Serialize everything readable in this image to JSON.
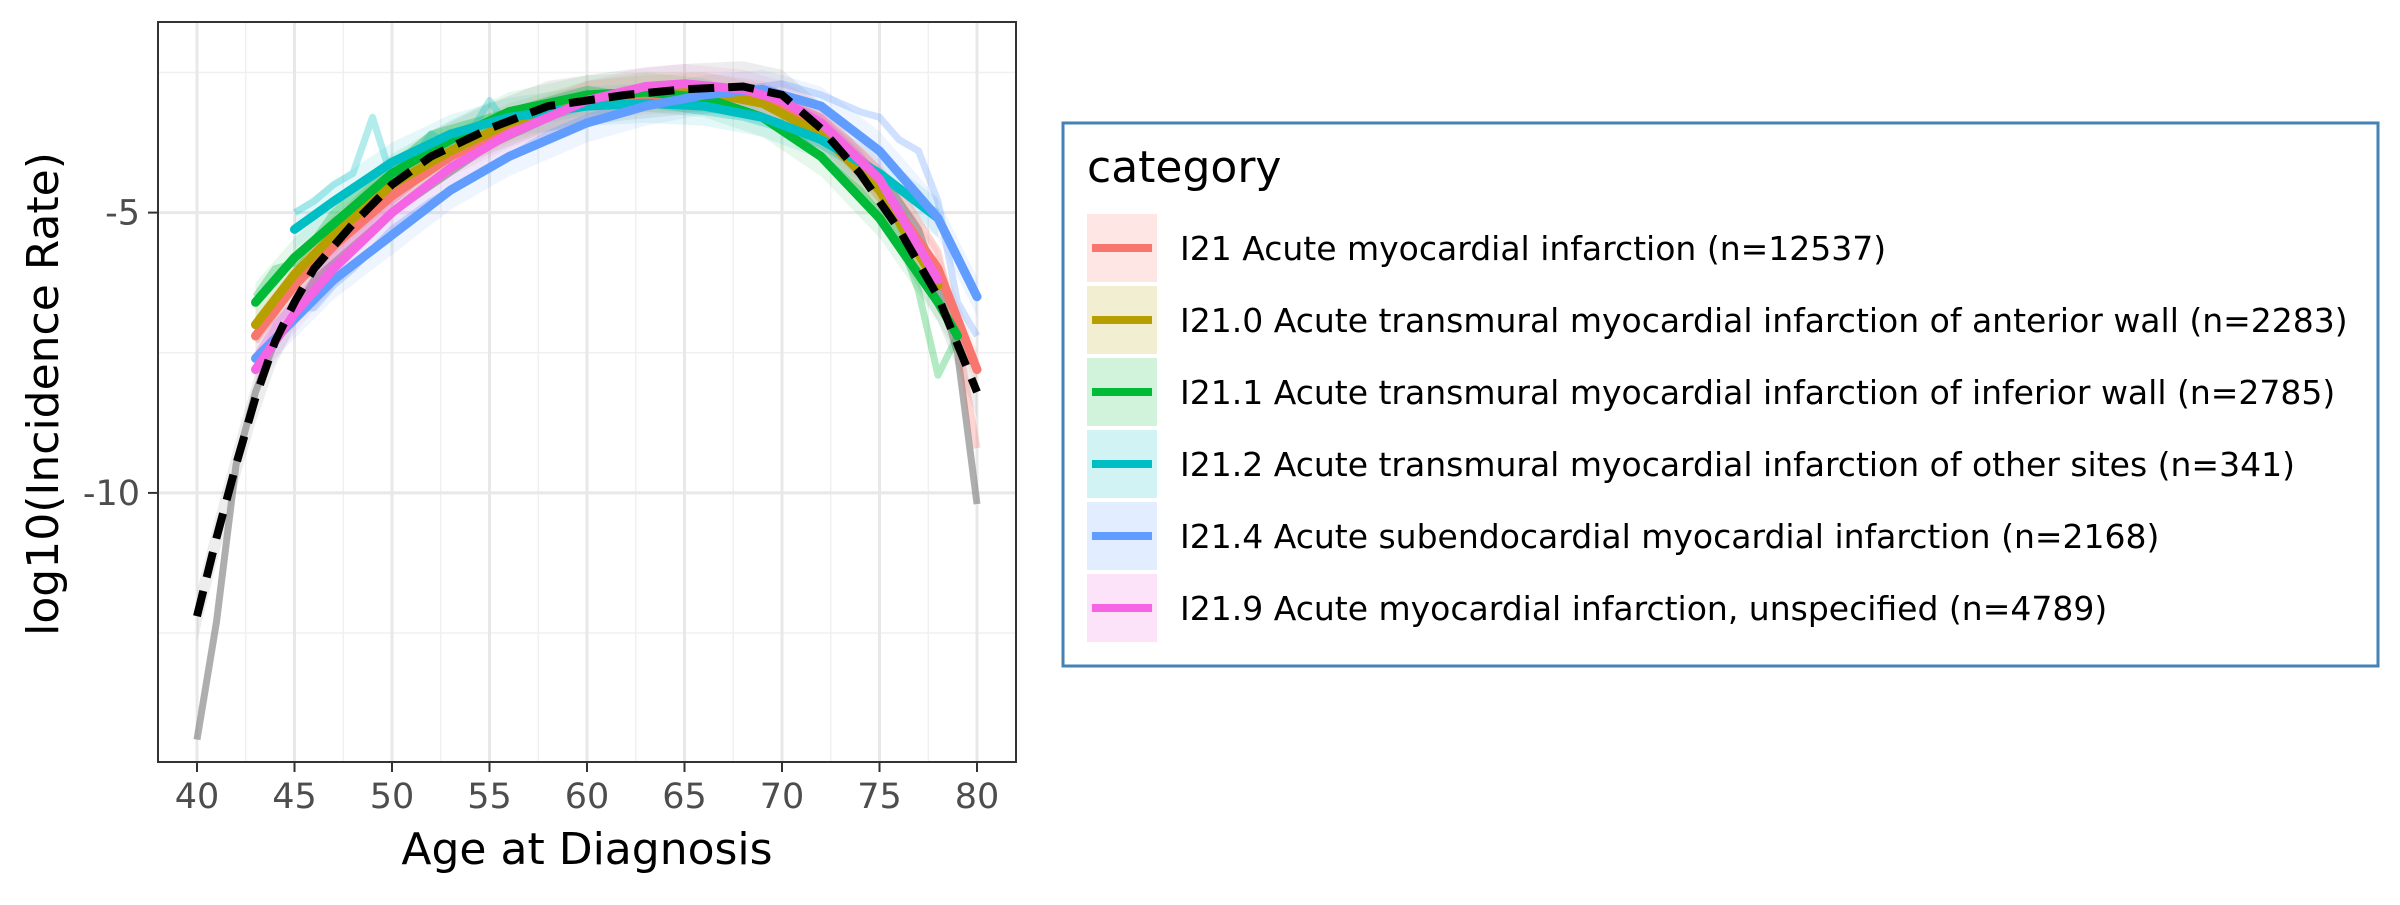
{
  "chart_data": {
    "type": "line",
    "title": "",
    "xlabel": "Age at Diagnosis",
    "ylabel": "log10(Incidence Rate)",
    "xlim": [
      38,
      82
    ],
    "ylim": [
      -14.8,
      -1.6
    ],
    "x_ticks": [
      40,
      45,
      50,
      55,
      60,
      65,
      70,
      75,
      80
    ],
    "y_ticks": [
      -5,
      -10
    ],
    "x_tick_labels": [
      "40",
      "45",
      "50",
      "55",
      "60",
      "65",
      "70",
      "75",
      "80"
    ],
    "y_tick_labels": [
      "-5",
      "-10"
    ],
    "grid": true,
    "legend": {
      "title": "category",
      "placement": "right",
      "entries": [
        {
          "label": "I21 Acute myocardial infarction (n=12537)",
          "color": "#F8766D"
        },
        {
          "label": "I21.0 Acute transmural myocardial infarction of anterior wall (n=2283)",
          "color": "#B79F00"
        },
        {
          "label": "I21.1 Acute transmural myocardial infarction of inferior wall (n=2785)",
          "color": "#00BA38"
        },
        {
          "label": "I21.2 Acute transmural myocardial infarction of other sites (n=341)",
          "color": "#00BFC4"
        },
        {
          "label": "I21.4 Acute subendocardial myocardial infarction (n=2168)",
          "color": "#619CFF"
        },
        {
          "label": "I21.9 Acute myocardial infarction, unspecified (n=4789)",
          "color": "#F564E3"
        }
      ]
    },
    "reference": {
      "raw": {
        "x": [
          40,
          41,
          42,
          43,
          44,
          45,
          46,
          48,
          50,
          55,
          60,
          65,
          70,
          75,
          77,
          78,
          79,
          80
        ],
        "y": [
          -14.4,
          -12.3,
          -9.5,
          -8.2,
          -7.3,
          -6.8,
          -6.2,
          -5.6,
          -5.0,
          -3.8,
          -3.0,
          -2.9,
          -3.0,
          -4.3,
          -5.3,
          -6.3,
          -7.5,
          -10.2
        ]
      },
      "smooth": {
        "x": [
          40,
          41,
          42,
          43,
          44,
          45,
          46,
          48,
          50,
          52,
          55,
          58,
          60,
          62,
          65,
          68,
          70,
          72,
          74,
          76,
          78,
          80
        ],
        "y": [
          -12.2,
          -10.8,
          -9.5,
          -8.3,
          -7.3,
          -6.6,
          -6.0,
          -5.2,
          -4.5,
          -4.0,
          -3.5,
          -3.1,
          -3.0,
          -2.9,
          -2.8,
          -2.75,
          -2.9,
          -3.5,
          -4.3,
          -5.3,
          -6.5,
          -8.2
        ]
      }
    },
    "series": [
      {
        "name": "I21 Acute myocardial infarction (n=12537)",
        "color": "#F8766D",
        "raw": {
          "x": [
            43,
            44,
            45,
            46,
            47,
            48,
            50,
            52,
            55,
            58,
            60,
            62,
            65,
            68,
            70,
            72,
            74,
            76,
            78,
            79,
            80
          ],
          "y": [
            -7.3,
            -6.8,
            -6.3,
            -5.9,
            -5.6,
            -5.3,
            -4.6,
            -4.1,
            -3.6,
            -3.2,
            -3.0,
            -2.9,
            -2.8,
            -2.8,
            -3.0,
            -3.3,
            -3.9,
            -4.6,
            -5.7,
            -7.2,
            -9.2
          ]
        },
        "smooth": {
          "x": [
            43,
            45,
            47,
            50,
            53,
            56,
            60,
            63,
            66,
            69,
            72,
            75,
            78,
            80
          ],
          "y": [
            -7.2,
            -6.3,
            -5.6,
            -4.7,
            -4.0,
            -3.5,
            -3.0,
            -2.9,
            -2.85,
            -3.0,
            -3.5,
            -4.5,
            -6.0,
            -7.8
          ]
        }
      },
      {
        "name": "I21.0 Acute transmural myocardial infarction of anterior wall (n=2283)",
        "color": "#B79F00",
        "raw": {
          "x": [
            43,
            44,
            45,
            46,
            48,
            50,
            52,
            55,
            58,
            60,
            62,
            65,
            68,
            70,
            72,
            74,
            76,
            78
          ],
          "y": [
            -7.0,
            -6.6,
            -6.1,
            -5.6,
            -5.0,
            -4.5,
            -4.0,
            -3.5,
            -3.1,
            -2.9,
            -2.9,
            -2.8,
            -2.9,
            -3.1,
            -3.6,
            -4.3,
            -5.2,
            -6.6
          ]
        },
        "smooth": {
          "x": [
            43,
            45,
            47,
            50,
            53,
            56,
            60,
            63,
            66,
            69,
            72,
            75,
            78
          ],
          "y": [
            -7.0,
            -6.1,
            -5.4,
            -4.5,
            -3.9,
            -3.4,
            -3.0,
            -2.85,
            -2.85,
            -3.05,
            -3.6,
            -4.6,
            -6.3
          ]
        }
      },
      {
        "name": "I21.1 Acute transmural myocardial infarction of inferior wall (n=2785)",
        "color": "#00BA38",
        "raw": {
          "x": [
            43,
            44,
            45,
            46,
            47,
            48,
            50,
            52,
            55,
            58,
            60,
            62,
            65,
            68,
            70,
            72,
            74,
            76,
            77,
            78,
            79
          ],
          "y": [
            -6.5,
            -6.0,
            -5.9,
            -5.5,
            -5.0,
            -4.7,
            -4.2,
            -3.6,
            -3.3,
            -3.0,
            -2.8,
            -2.9,
            -2.9,
            -3.2,
            -3.4,
            -4.0,
            -4.6,
            -5.4,
            -6.4,
            -7.9,
            -7.2
          ]
        },
        "smooth": {
          "x": [
            43,
            45,
            47,
            50,
            53,
            56,
            60,
            63,
            66,
            69,
            72,
            75,
            78,
            79
          ],
          "y": [
            -6.6,
            -5.8,
            -5.2,
            -4.3,
            -3.7,
            -3.2,
            -2.9,
            -2.85,
            -2.95,
            -3.3,
            -4.0,
            -5.1,
            -6.6,
            -7.2
          ]
        }
      },
      {
        "name": "I21.2 Acute transmural myocardial infarction of other sites (n=341)",
        "color": "#00BFC4",
        "raw": {
          "x": [
            45,
            46,
            47,
            48,
            49,
            50,
            51,
            52,
            53,
            54,
            55,
            56,
            57,
            58,
            60,
            62,
            64,
            66,
            68,
            70,
            72,
            74,
            76,
            78
          ],
          "y": [
            -5.0,
            -4.8,
            -4.5,
            -4.3,
            -3.3,
            -4.4,
            -4.1,
            -3.6,
            -3.8,
            -3.6,
            -3.0,
            -3.5,
            -3.1,
            -3.3,
            -3.1,
            -3.0,
            -3.1,
            -3.2,
            -3.3,
            -3.5,
            -3.8,
            -4.2,
            -4.6,
            -5.0
          ]
        },
        "smooth": {
          "x": [
            45,
            47,
            50,
            53,
            56,
            60,
            63,
            66,
            69,
            72,
            75,
            78
          ],
          "y": [
            -5.3,
            -4.8,
            -4.1,
            -3.6,
            -3.3,
            -3.1,
            -3.05,
            -3.1,
            -3.3,
            -3.7,
            -4.3,
            -5.1
          ]
        }
      },
      {
        "name": "I21.4 Acute subendocardial myocardial infarction (n=2168)",
        "color": "#619CFF",
        "raw": {
          "x": [
            45,
            46,
            47,
            48,
            50,
            52,
            55,
            58,
            60,
            62,
            65,
            68,
            70,
            72,
            74,
            75,
            76,
            77,
            78,
            79,
            80
          ],
          "y": [
            -6.7,
            -6.7,
            -6.3,
            -6.0,
            -5.3,
            -4.8,
            -4.2,
            -3.6,
            -3.3,
            -3.1,
            -3.0,
            -2.8,
            -2.7,
            -2.9,
            -3.2,
            -3.3,
            -3.7,
            -3.9,
            -4.8,
            -6.6,
            -7.2
          ]
        },
        "smooth": {
          "x": [
            43,
            45,
            47,
            50,
            53,
            56,
            60,
            63,
            66,
            69,
            72,
            75,
            78,
            80
          ],
          "y": [
            -7.6,
            -6.9,
            -6.2,
            -5.4,
            -4.6,
            -4.0,
            -3.4,
            -3.1,
            -2.9,
            -2.8,
            -3.1,
            -3.9,
            -5.1,
            -6.5
          ]
        }
      },
      {
        "name": "I21.9 Acute myocardial infarction, unspecified (n=4789)",
        "color": "#F564E3",
        "raw": {
          "x": [
            43,
            44,
            45,
            46,
            47,
            48,
            50,
            52,
            55,
            58,
            60,
            62,
            65,
            68,
            70,
            72,
            74,
            76,
            78
          ],
          "y": [
            -7.6,
            -7.0,
            -6.6,
            -6.2,
            -5.8,
            -5.5,
            -4.8,
            -4.2,
            -3.7,
            -3.2,
            -3.0,
            -2.8,
            -2.7,
            -2.8,
            -3.0,
            -3.3,
            -4.0,
            -4.9,
            -6.4
          ]
        },
        "smooth": {
          "x": [
            43,
            45,
            47,
            50,
            53,
            56,
            60,
            63,
            65,
            68,
            70,
            72,
            75,
            78
          ],
          "y": [
            -7.8,
            -6.8,
            -6.0,
            -5.0,
            -4.2,
            -3.6,
            -3.0,
            -2.75,
            -2.7,
            -2.8,
            -3.0,
            -3.4,
            -4.4,
            -6.2
          ]
        }
      }
    ]
  }
}
